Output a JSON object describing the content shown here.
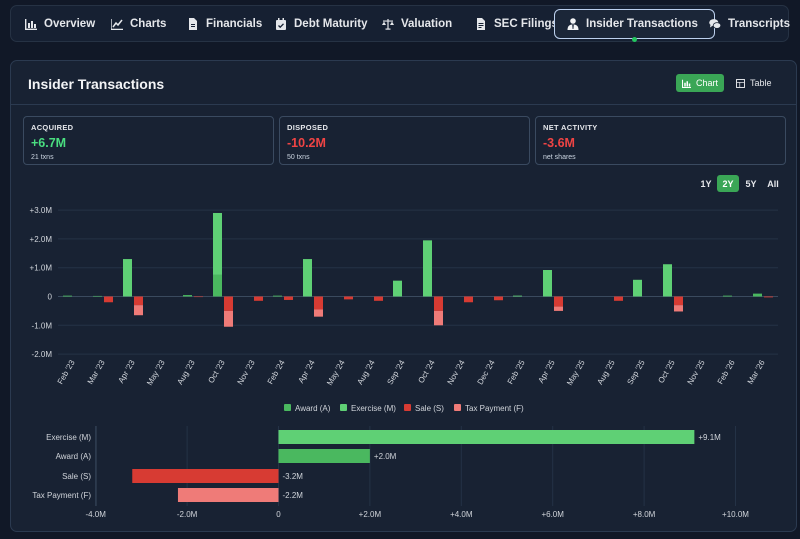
{
  "tabs": [
    {
      "label": "Overview",
      "icon": "bar-chart-icon",
      "active": false
    },
    {
      "label": "Charts",
      "icon": "line-chart-icon",
      "active": false
    },
    {
      "label": "Financials",
      "icon": "document-icon",
      "active": false
    },
    {
      "label": "Debt Maturity",
      "icon": "calendar-icon",
      "active": false
    },
    {
      "label": "Valuation",
      "icon": "scale-icon",
      "active": false
    },
    {
      "label": "SEC Filings",
      "icon": "file-text-icon",
      "active": false
    },
    {
      "label": "Insider Transactions",
      "icon": "user-tie-icon",
      "active": true
    },
    {
      "label": "Transcripts",
      "icon": "chat-bubbles-icon",
      "active": false
    }
  ],
  "panel": {
    "title": "Insider Transactions",
    "view_toggle": {
      "chart": "Chart",
      "table": "Table",
      "selected": "Chart"
    }
  },
  "stats": [
    {
      "label": "ACQUIRED",
      "value": "+6.7M",
      "sub": "21 txns",
      "color": "#4ade80"
    },
    {
      "label": "DISPOSED",
      "value": "-10.2M",
      "sub": "50 txns",
      "color": "#ef4444"
    },
    {
      "label": "NET ACTIVITY",
      "value": "-3.6M",
      "sub": "net shares",
      "color": "#ef4444"
    }
  ],
  "ranges": {
    "options": [
      "1Y",
      "2Y",
      "5Y",
      "All"
    ],
    "selected": "2Y"
  },
  "colors": {
    "award": "#4ab85f",
    "exercise": "#5fd075",
    "sale": "#d73b33",
    "tax": "#ef7b78",
    "accent": "#3aa656"
  },
  "chart_data": [
    {
      "type": "bar",
      "stacked": true,
      "title": "",
      "ylim": [
        -2.0,
        3.0
      ],
      "y_ticks": [
        "-2.0M",
        "-1.0M",
        "0",
        "+1.0M",
        "+2.0M",
        "+3.0M"
      ],
      "y_tick_values": [
        -2,
        -1,
        0,
        1,
        2,
        3
      ],
      "categories": [
        "Feb '23",
        "Mar '23",
        "Apr '23",
        "May '23",
        "Aug '23",
        "Oct '23",
        "Nov '23",
        "Feb '24",
        "Apr '24",
        "May '24",
        "Aug '24",
        "Sep '24",
        "Oct '24",
        "Nov '24",
        "Dec '24",
        "Feb '25",
        "Apr '25",
        "May '25",
        "Aug '25",
        "Sep '25",
        "Oct '25",
        "Nov '25",
        "Feb '26",
        "Mar '26"
      ],
      "series": [
        {
          "name": "Award (A)",
          "key": "award",
          "group": "pos",
          "values": [
            0.03,
            0.02,
            0,
            0,
            0.05,
            0.75,
            0,
            0.03,
            0,
            0,
            0,
            0,
            0,
            0,
            0,
            0,
            0,
            0,
            0,
            0,
            0,
            0,
            0.03,
            0.1
          ]
        },
        {
          "name": "Exercise (M)",
          "key": "exercise",
          "group": "pos",
          "values": [
            0,
            0,
            1.3,
            0,
            0,
            2.15,
            0,
            0,
            1.3,
            0,
            0,
            0.55,
            1.95,
            0,
            0,
            0.03,
            0.92,
            0,
            0,
            0.58,
            1.12,
            0,
            0,
            0
          ]
        },
        {
          "name": "Sale (S)",
          "key": "sale",
          "group": "neg",
          "values": [
            0,
            -0.2,
            -0.3,
            0,
            -0.02,
            -0.5,
            -0.15,
            -0.12,
            -0.45,
            -0.1,
            -0.15,
            0,
            -0.5,
            -0.2,
            -0.13,
            0,
            -0.35,
            0,
            -0.15,
            0,
            -0.3,
            0,
            0,
            -0.03
          ]
        },
        {
          "name": "Tax Payment (F)",
          "key": "tax",
          "group": "neg",
          "values": [
            0,
            0,
            -0.35,
            0,
            0,
            -0.55,
            0,
            0,
            -0.25,
            0,
            0,
            0,
            -0.5,
            0,
            0,
            0,
            -0.15,
            0,
            0,
            0,
            -0.22,
            0,
            0,
            0
          ]
        }
      ],
      "legend": "bottom-center",
      "grid": true
    },
    {
      "type": "bar",
      "orientation": "horizontal",
      "categories": [
        "Exercise (M)",
        "Award (A)",
        "Sale (S)",
        "Tax Payment (F)"
      ],
      "values": [
        9.1,
        2.0,
        -3.2,
        -2.2
      ],
      "value_labels": [
        "+9.1M",
        "+2.0M",
        "-3.2M",
        "-2.2M"
      ],
      "color_keys": [
        "exercise",
        "award",
        "sale",
        "tax"
      ],
      "xlim": [
        -4.0,
        10.0
      ],
      "x_ticks": [
        "-4.0M",
        "-2.0M",
        "0",
        "+2.0M",
        "+4.0M",
        "+6.0M",
        "+8.0M",
        "+10.0M"
      ],
      "x_tick_values": [
        -4,
        -2,
        0,
        2,
        4,
        6,
        8,
        10
      ],
      "grid": true
    }
  ]
}
